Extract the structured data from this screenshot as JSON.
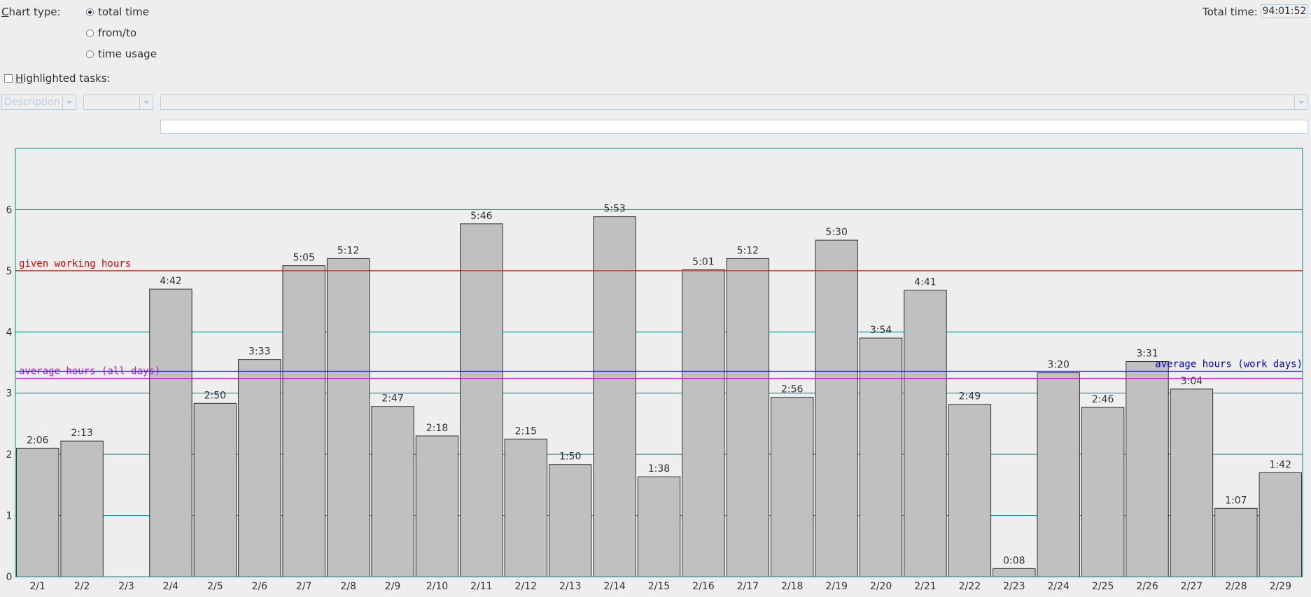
{
  "controls": {
    "chart_type_label_prefix": "C",
    "chart_type_label_rest": "hart type:",
    "radios": [
      {
        "label": "total time",
        "checked": true
      },
      {
        "label": "from/to",
        "checked": false
      },
      {
        "label": "time usage",
        "checked": false
      }
    ],
    "total_time_label": "Total time:",
    "total_time_value": "94:01:52",
    "highlight_prefix": "H",
    "highlight_rest": "ighlighted tasks:",
    "highlight_checked": false,
    "field_combo_value": "Description",
    "operator_combo_value": "",
    "value_combo_value": "",
    "text_field_value": ""
  },
  "chart_data": {
    "type": "bar",
    "categories": [
      "2/1",
      "2/2",
      "2/3",
      "2/4",
      "2/5",
      "2/6",
      "2/7",
      "2/8",
      "2/9",
      "2/10",
      "2/11",
      "2/12",
      "2/13",
      "2/14",
      "2/15",
      "2/16",
      "2/17",
      "2/18",
      "2/19",
      "2/20",
      "2/21",
      "2/22",
      "2/23",
      "2/24",
      "2/25",
      "2/26",
      "2/27",
      "2/28",
      "2/29"
    ],
    "values": [
      2.1,
      2.217,
      0,
      4.7,
      2.833,
      3.55,
      5.083,
      5.2,
      2.783,
      2.3,
      5.767,
      2.25,
      1.833,
      5.883,
      1.633,
      5.017,
      5.2,
      2.933,
      5.5,
      3.9,
      4.683,
      2.817,
      0.133,
      3.333,
      2.767,
      3.517,
      3.067,
      1.117,
      1.7
    ],
    "data_labels": [
      "2:06",
      "2:13",
      "",
      "4:42",
      "2:50",
      "3:33",
      "5:05",
      "5:12",
      "2:47",
      "2:18",
      "5:46",
      "2:15",
      "1:50",
      "5:53",
      "1:38",
      "5:01",
      "5:12",
      "2:56",
      "5:30",
      "3:54",
      "4:41",
      "2:49",
      "0:08",
      "3:20",
      "2:46",
      "3:31",
      "3:04",
      "1:07",
      "1:42"
    ],
    "ylim": [
      0,
      7
    ],
    "yticks": [
      "0",
      "1",
      "2",
      "3",
      "4",
      "5",
      "6"
    ],
    "grid": true,
    "reference_lines": [
      {
        "label": "given working hours",
        "value": 5.0,
        "color": "#e00000",
        "label_side": "left"
      },
      {
        "label": "average hours (all days)",
        "value": 3.242,
        "color": "#e000e0",
        "label_side": "left"
      },
      {
        "label": "average hours (work days)",
        "value": 3.358,
        "color": "#0000cc",
        "label_side": "right"
      }
    ],
    "colors": {
      "bar_fill": "#c0c0c0",
      "bar_stroke": "#333333",
      "grid": "#008b8b",
      "frame": "#008b8b"
    }
  }
}
